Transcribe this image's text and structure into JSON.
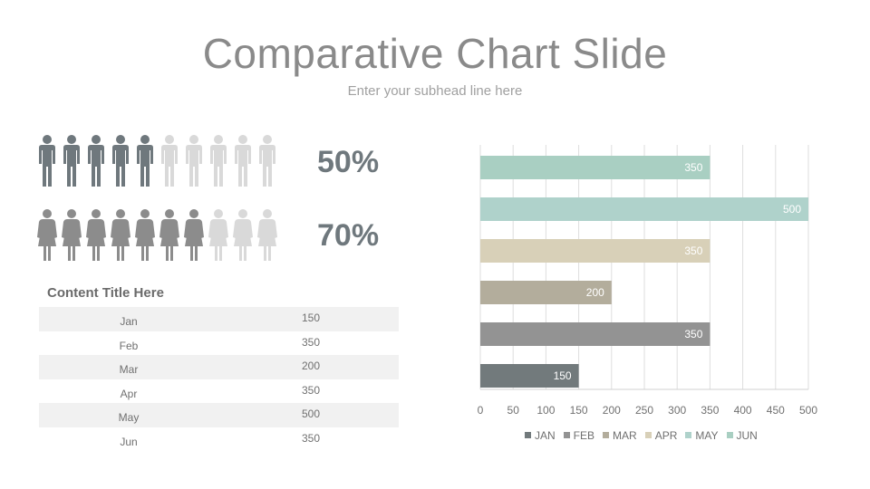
{
  "header": {
    "title": "Comparative Chart Slide",
    "subtitle": "Enter your subhead line here"
  },
  "infographic": {
    "male": {
      "total": 10,
      "filled": 5,
      "percent_label": "50%",
      "filled_color": "#6f787d",
      "empty_color": "#d9d9d9"
    },
    "female": {
      "total": 10,
      "filled": 7,
      "percent_label": "70%",
      "filled_color": "#8c8c8c",
      "empty_color": "#d9d9d9"
    }
  },
  "table": {
    "title": "Content Title Here",
    "rows": [
      {
        "month": "Jan",
        "value": "150"
      },
      {
        "month": "Feb",
        "value": "350"
      },
      {
        "month": "Mar",
        "value": "200"
      },
      {
        "month": "Apr",
        "value": "350"
      },
      {
        "month": "May",
        "value": "500"
      },
      {
        "month": "Jun",
        "value": "350"
      }
    ]
  },
  "chart_data": {
    "type": "bar",
    "orientation": "horizontal",
    "categories": [
      "JUN",
      "MAY",
      "APR",
      "MAR",
      "FEB",
      "JAN"
    ],
    "values": [
      350,
      500,
      350,
      200,
      350,
      150
    ],
    "colors": [
      "#a9cfc2",
      "#afd2cb",
      "#d8d0b8",
      "#b3ad9c",
      "#939393",
      "#727a7c"
    ],
    "xlim": [
      0,
      500
    ],
    "xticks": [
      0,
      50,
      100,
      150,
      200,
      250,
      300,
      350,
      400,
      450,
      500
    ],
    "grid": true,
    "data_labels": true,
    "legend": {
      "position": "bottom",
      "entries": [
        {
          "label": "JAN",
          "color": "#727a7c"
        },
        {
          "label": "FEB",
          "color": "#939393"
        },
        {
          "label": "MAR",
          "color": "#b3ad9c"
        },
        {
          "label": "APR",
          "color": "#d8d0b8"
        },
        {
          "label": "MAY",
          "color": "#afd2cb"
        },
        {
          "label": "JUN",
          "color": "#a9cfc2"
        }
      ]
    }
  }
}
